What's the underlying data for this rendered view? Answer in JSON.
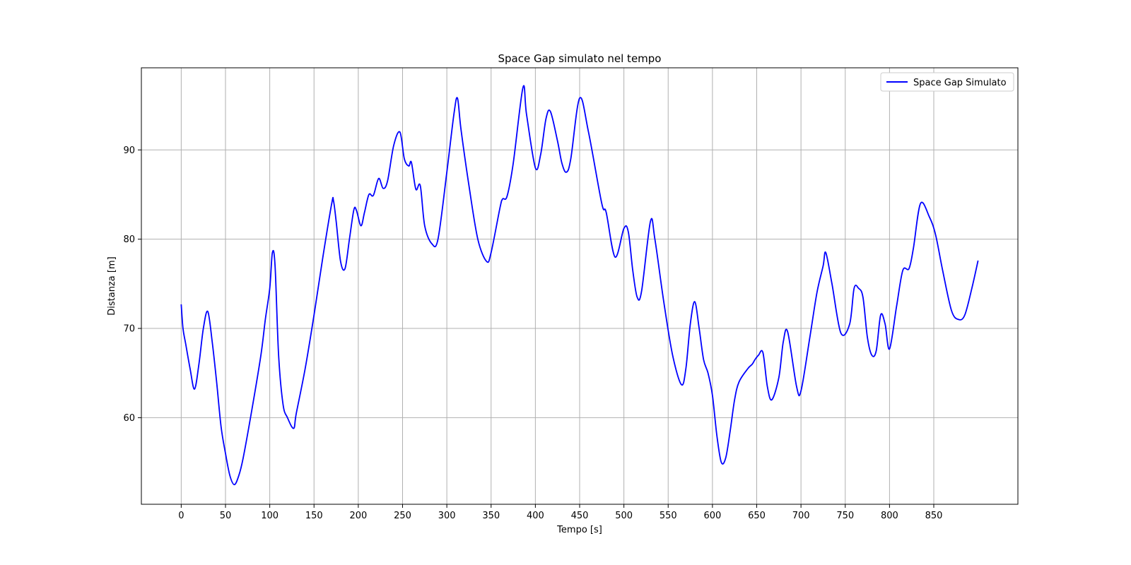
{
  "chart_data": {
    "type": "line",
    "title": "Space Gap simulato nel tempo",
    "xlabel": "Tempo [s]",
    "ylabel": "Distanza [m]",
    "xlim": [
      -45,
      945
    ],
    "ylim": [
      50.3,
      99.2
    ],
    "xticks": [
      0,
      50,
      100,
      150,
      200,
      250,
      300,
      350,
      400,
      450,
      500,
      550,
      600,
      650,
      700,
      750,
      800,
      850
    ],
    "yticks": [
      60,
      70,
      80,
      90
    ],
    "grid": true,
    "legend_position": "top-right",
    "colors": {
      "line": "#0000ff",
      "grid": "#b0b0b0",
      "axes": "#000000"
    },
    "series": [
      {
        "name": "Space Gap Simulato",
        "x": [
          0,
          2,
          5,
          10,
          15,
          20,
          25,
          30,
          35,
          40,
          45,
          50,
          55,
          60,
          65,
          70,
          80,
          90,
          95,
          100,
          103,
          106,
          110,
          115,
          120,
          127,
          130,
          140,
          150,
          160,
          170,
          172,
          175,
          180,
          185,
          190,
          195,
          198,
          203,
          207,
          212,
          217,
          223,
          228,
          233,
          240,
          247,
          252,
          257,
          260,
          265,
          270,
          275,
          283,
          290,
          300,
          308,
          312,
          316,
          325,
          335,
          345,
          350,
          360,
          363,
          368,
          375,
          386,
          390,
          400,
          406,
          412,
          417,
          425,
          430,
          435,
          440,
          450,
          460,
          475,
          480,
          490,
          500,
          505,
          510,
          515,
          520,
          530,
          535,
          545,
          555,
          565,
          570,
          575,
          580,
          585,
          590,
          595,
          600,
          605,
          610,
          615,
          620,
          625,
          630,
          640,
          645,
          648,
          652,
          657,
          662,
          667,
          675,
          680,
          685,
          695,
          700,
          710,
          718,
          725,
          728,
          735,
          745,
          755,
          760,
          765,
          770,
          775,
          780,
          785,
          790,
          795,
          800,
          808,
          815,
          822,
          827,
          835,
          845,
          852,
          860,
          870,
          878,
          885,
          893,
          900
        ],
        "y": [
          72.7,
          70,
          68.3,
          65.5,
          63.2,
          66,
          70,
          71.9,
          68.5,
          64,
          59,
          56,
          53.5,
          52.5,
          53.5,
          55.5,
          61,
          67,
          71,
          74.5,
          78.5,
          77,
          67,
          61.5,
          60,
          58.8,
          60.5,
          65.5,
          71.5,
          78,
          84,
          84.3,
          82,
          77.5,
          76.7,
          80,
          83.3,
          83.2,
          81.5,
          83,
          85,
          84.9,
          86.8,
          85.7,
          86.5,
          90.5,
          92,
          89,
          88.2,
          88.6,
          85.6,
          86,
          81.5,
          79.5,
          80,
          87.5,
          94,
          95.8,
          92.3,
          86,
          80,
          77.5,
          78.5,
          83.5,
          84.5,
          84.8,
          88.5,
          97,
          94,
          88,
          89.5,
          93.5,
          94.3,
          91,
          88.5,
          87.5,
          89,
          95.8,
          92,
          84,
          83,
          78,
          81.2,
          80.8,
          76.5,
          73.5,
          74.2,
          82,
          80,
          73,
          67,
          63.7,
          65.5,
          70.5,
          73,
          70,
          66.5,
          65,
          62.5,
          58,
          55,
          55.5,
          58.5,
          62,
          64,
          65.5,
          66,
          66.5,
          67,
          67.3,
          63.5,
          62,
          64.5,
          68.5,
          69.6,
          63.5,
          63,
          69,
          74,
          77,
          78.5,
          75,
          69.5,
          70.5,
          74.5,
          74.5,
          73.5,
          69,
          67,
          67.5,
          71.5,
          70.5,
          67.7,
          72.5,
          76.5,
          76.7,
          79,
          84,
          82.5,
          80.5,
          76.5,
          72,
          71,
          71.5,
          74.5,
          77.6
        ]
      }
    ]
  }
}
